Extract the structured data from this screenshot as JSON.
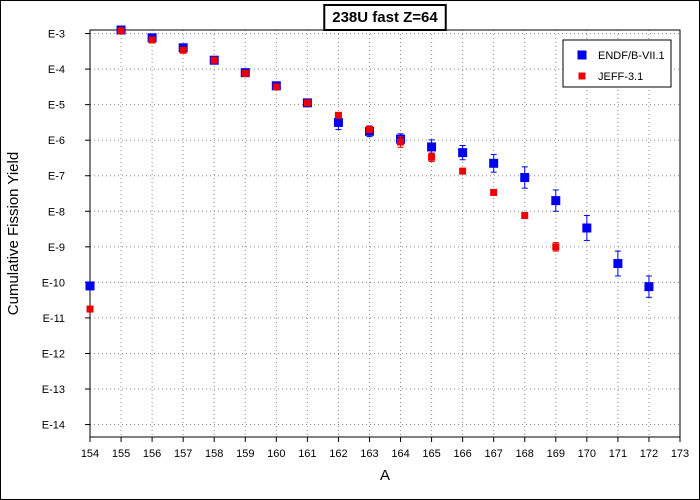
{
  "chart_data": {
    "type": "scatter",
    "title": "238U fast Z=64",
    "xlabel": "A",
    "ylabel": "Cumulative Fission Yield",
    "x_range": [
      154,
      173
    ],
    "y_scale": "log",
    "y_range_exponent": [
      -14.35,
      -2.9
    ],
    "x_ticks": [
      154,
      155,
      156,
      157,
      158,
      159,
      160,
      161,
      162,
      163,
      164,
      165,
      166,
      167,
      168,
      169,
      170,
      171,
      172,
      173
    ],
    "y_ticks": [
      {
        "exp": -3,
        "label": "E-3"
      },
      {
        "exp": -4,
        "label": "E-4"
      },
      {
        "exp": -5,
        "label": "E-5"
      },
      {
        "exp": -6,
        "label": "E-6"
      },
      {
        "exp": -7,
        "label": "E-7"
      },
      {
        "exp": -8,
        "label": "E-8"
      },
      {
        "exp": -9,
        "label": "E-9"
      },
      {
        "exp": -10,
        "label": "E-10"
      },
      {
        "exp": -11,
        "label": "E-11"
      },
      {
        "exp": -12,
        "label": "E-12"
      },
      {
        "exp": -13,
        "label": "E-13"
      },
      {
        "exp": -14,
        "label": "E-14"
      }
    ],
    "grid": true,
    "legend_position": "top-right",
    "series": [
      {
        "name": "ENDF/B-VII.1",
        "color": "#0000ee",
        "marker": "square",
        "points": [
          {
            "x": 154,
            "exp": -10.1
          },
          {
            "x": 155,
            "exp": -2.9
          },
          {
            "x": 156,
            "exp": -3.12
          },
          {
            "x": 157,
            "exp": -3.4
          },
          {
            "x": 158,
            "exp": -3.75
          },
          {
            "x": 159,
            "exp": -4.1
          },
          {
            "x": 160,
            "exp": -4.47
          },
          {
            "x": 161,
            "exp": -4.95
          },
          {
            "x": 162,
            "exp": -5.5,
            "err": 0.2
          },
          {
            "x": 163,
            "exp": -5.75,
            "err": 0.15
          },
          {
            "x": 164,
            "exp": -5.97,
            "err": 0.15
          },
          {
            "x": 165,
            "exp": -6.19,
            "err": 0.2
          },
          {
            "x": 166,
            "exp": -6.35,
            "err": 0.2
          },
          {
            "x": 167,
            "exp": -6.65,
            "err": 0.25
          },
          {
            "x": 168,
            "exp": -7.05,
            "err": 0.3
          },
          {
            "x": 169,
            "exp": -7.7,
            "err": 0.3
          },
          {
            "x": 170,
            "exp": -8.47,
            "err": 0.35
          },
          {
            "x": 171,
            "exp": -9.47,
            "err": 0.35
          },
          {
            "x": 172,
            "exp": -10.12,
            "err": 0.3
          }
        ]
      },
      {
        "name": "JEFF-3.1",
        "color": "#ee0000",
        "marker": "square",
        "points": [
          {
            "x": 154,
            "exp": -10.75
          },
          {
            "x": 155,
            "exp": -2.92
          },
          {
            "x": 156,
            "exp": -3.18
          },
          {
            "x": 157,
            "exp": -3.47
          },
          {
            "x": 158,
            "exp": -3.75
          },
          {
            "x": 159,
            "exp": -4.12
          },
          {
            "x": 160,
            "exp": -4.5
          },
          {
            "x": 161,
            "exp": -4.95
          },
          {
            "x": 162,
            "exp": -5.3
          },
          {
            "x": 163,
            "exp": -5.7
          },
          {
            "x": 164,
            "exp": -6.05,
            "err": 0.15
          },
          {
            "x": 165,
            "exp": -6.48,
            "err": 0.12
          },
          {
            "x": 166,
            "exp": -6.87
          },
          {
            "x": 167,
            "exp": -7.47
          },
          {
            "x": 168,
            "exp": -8.12
          },
          {
            "x": 169,
            "exp": -9.0,
            "err": 0.12
          }
        ]
      }
    ]
  }
}
